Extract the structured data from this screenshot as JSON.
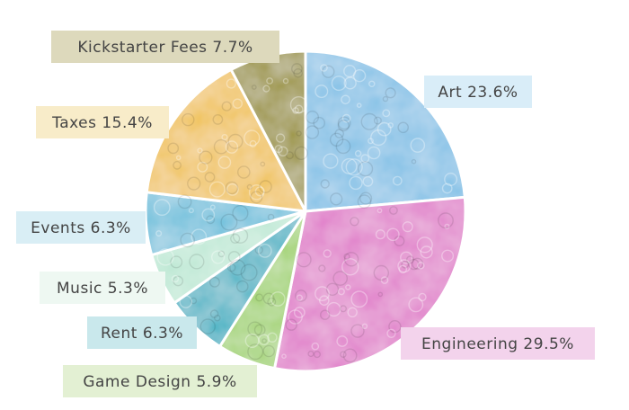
{
  "chart_data": {
    "type": "pie",
    "start_angle_deg": 0,
    "direction": "clockwise",
    "slices": [
      {
        "label": "Art 23.6%",
        "name": "Art",
        "value": 23.6,
        "color": "#7fc0e6",
        "label_bg": "#d9edf8"
      },
      {
        "label": "Engineering 29.5%",
        "name": "Engineering",
        "value": 29.5,
        "color": "#e07cc9",
        "label_bg": "#f3d3ec"
      },
      {
        "label": "Game Design 5.9%",
        "name": "Game Design",
        "value": 5.9,
        "color": "#9fd26b",
        "label_bg": "#e3f0d3"
      },
      {
        "label": "Rent 6.3%",
        "name": "Rent",
        "value": 6.3,
        "color": "#3fb2c4",
        "label_bg": "#c9e8ec"
      },
      {
        "label": "Music 5.3%",
        "name": "Music",
        "value": 5.3,
        "color": "#bde8d4",
        "label_bg": "#eef8f2"
      },
      {
        "label": "Events 6.3%",
        "name": "Events",
        "value": 6.3,
        "color": "#6cc0dc",
        "label_bg": "#d9eef5"
      },
      {
        "label": "Taxes 15.4%",
        "name": "Taxes",
        "value": 15.4,
        "color": "#f0c14e",
        "label_bg": "#f8ecc9"
      },
      {
        "label": "Kickstarter Fees 7.7%",
        "name": "Kickstarter Fees",
        "value": 7.7,
        "color": "#9a9233",
        "label_bg": "#ddd9bc"
      }
    ]
  }
}
